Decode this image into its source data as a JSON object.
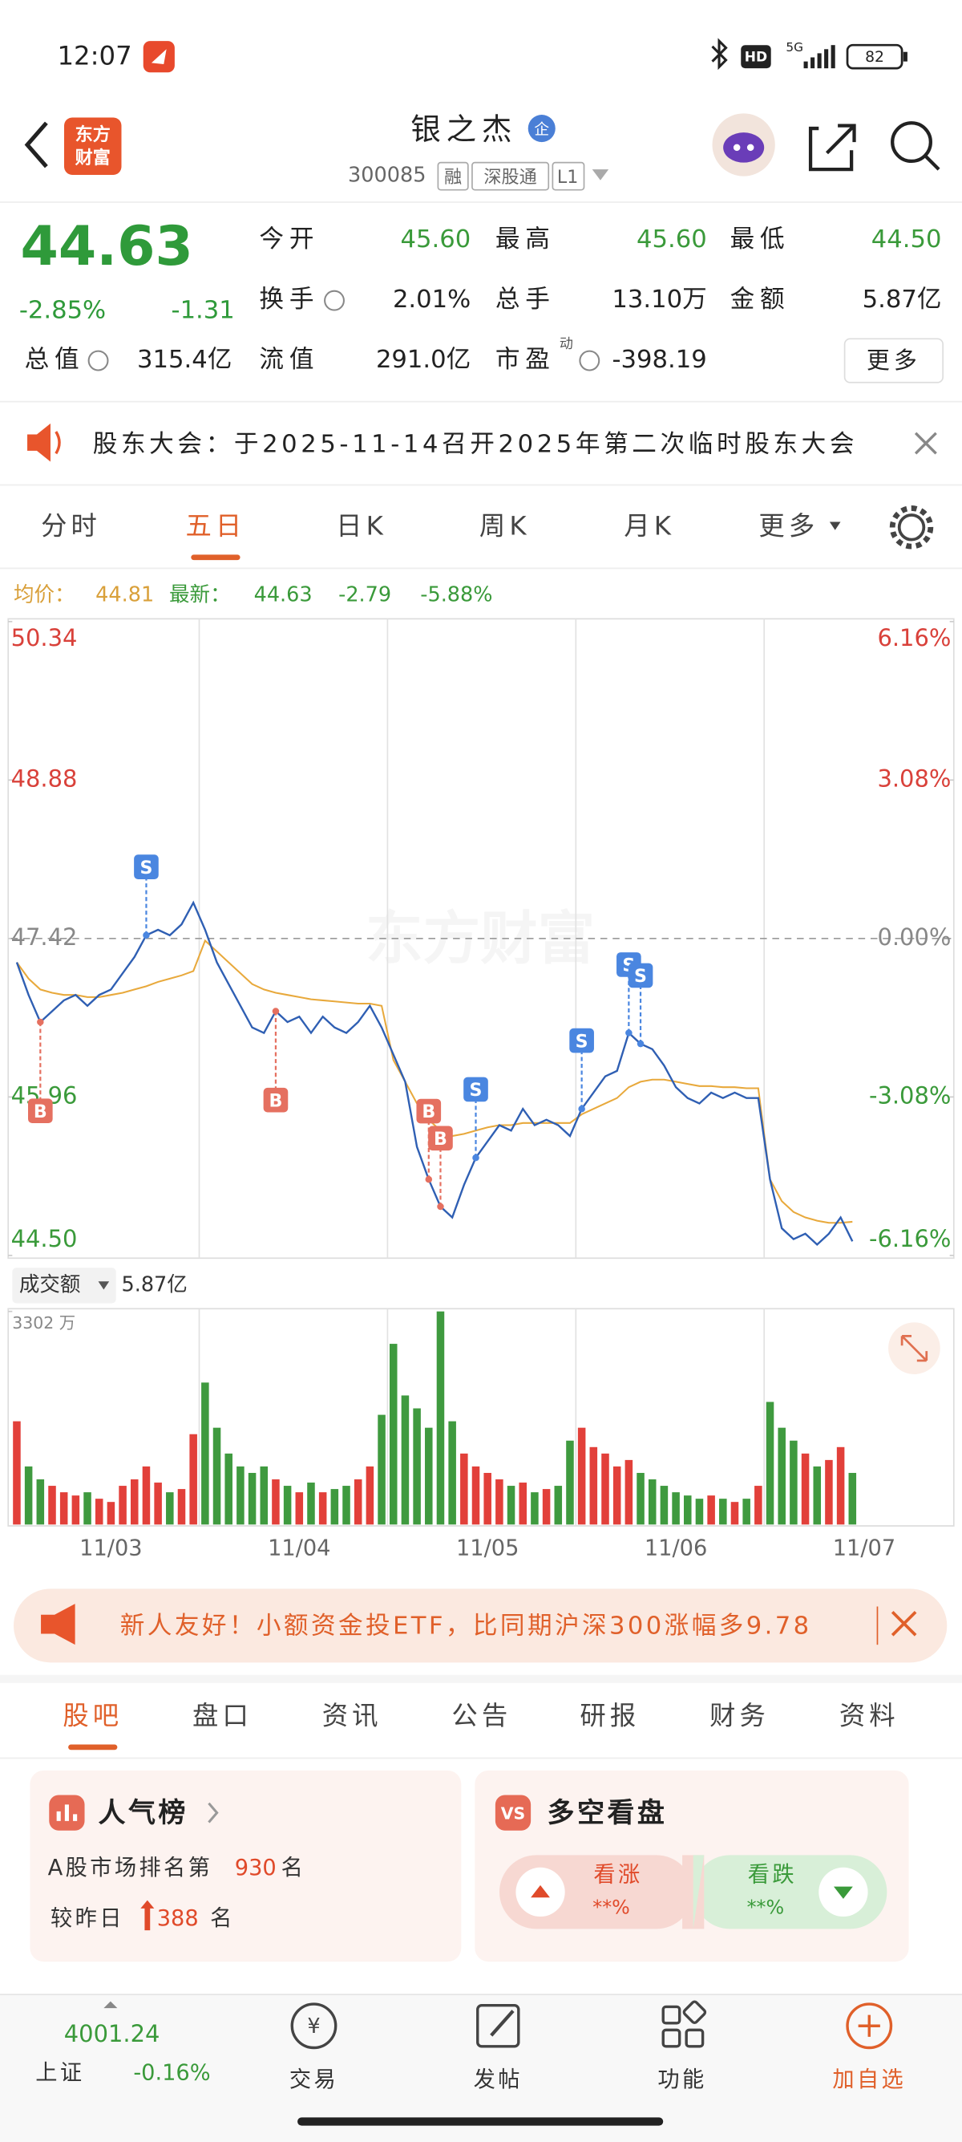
{
  "status_bar": {
    "time": "12:07",
    "hd": "HD",
    "network": "5G",
    "battery": "82"
  },
  "header": {
    "logo": [
      "东方",
      "财富"
    ],
    "name": "银之杰",
    "badge": "企",
    "code": "300085",
    "tags": [
      "融",
      "深股通",
      "L1"
    ]
  },
  "quote": {
    "price": "44.63",
    "change_pct": "-2.85%",
    "change": "-1.31",
    "fields": [
      {
        "label": "今开",
        "value": "45.60"
      },
      {
        "label": "最高",
        "value": "45.60"
      },
      {
        "label": "最低",
        "value": "44.50"
      },
      {
        "label": "换手",
        "value": "2.01%"
      },
      {
        "label": "总手",
        "value": "13.10万"
      },
      {
        "label": "金额",
        "value": "5.87亿"
      },
      {
        "label": "总值",
        "value": "315.4亿"
      },
      {
        "label": "流值",
        "value": "291.0亿"
      },
      {
        "label": "市盈",
        "sup": "动",
        "value": "-398.19"
      }
    ],
    "more": "更多"
  },
  "notice": {
    "text": "股东大会：于2025-11-14召开2025年第二次临时股东大会"
  },
  "chart_tabs": {
    "items": [
      "分时",
      "五日",
      "日K",
      "周K",
      "月K",
      "更多"
    ],
    "active": 1
  },
  "watermark": "东方财富",
  "chart_data": {
    "type": "line",
    "categories": [
      null,
      null,
      null,
      null,
      null,
      null,
      null,
      null,
      "11/03",
      null,
      null,
      null,
      null,
      null,
      null,
      null,
      null,
      null,
      null,
      null,
      null,
      null,
      null,
      null,
      "11/04",
      null,
      null,
      null,
      null,
      null,
      null,
      null,
      null,
      null,
      null,
      null,
      null,
      null,
      null,
      null,
      "11/05",
      null,
      null,
      null,
      null,
      null,
      null,
      null,
      null,
      null,
      null,
      null,
      null,
      null,
      null,
      null,
      "11/06",
      null,
      null,
      null,
      null,
      null,
      null,
      null,
      null,
      null,
      null,
      null,
      null,
      null,
      null,
      null,
      "11/07",
      null,
      null,
      null,
      null,
      null,
      null,
      null
    ],
    "series": [
      {
        "name": "均价：",
        "color": "#e8a93c",
        "values": [
          47.2,
          47.05,
          46.95,
          46.92,
          46.9,
          46.9,
          46.88,
          46.88,
          46.9,
          46.92,
          46.95,
          46.98,
          47.02,
          47.05,
          47.08,
          47.12,
          47.4,
          47.3,
          47.2,
          47.1,
          47.0,
          46.95,
          46.92,
          46.9,
          46.88,
          46.86,
          46.85,
          46.84,
          46.83,
          46.82,
          46.82,
          46.8,
          46.3,
          46.1,
          45.9,
          45.75,
          45.65,
          45.6,
          45.62,
          45.65,
          45.68,
          45.7,
          45.7,
          45.72,
          45.72,
          45.72,
          45.72,
          45.72,
          45.8,
          45.85,
          45.9,
          45.95,
          46.05,
          46.1,
          46.12,
          46.12,
          46.1,
          46.08,
          46.06,
          46.06,
          46.05,
          46.05,
          46.04,
          46.04,
          45.2,
          45.0,
          44.9,
          44.85,
          44.82,
          44.8,
          44.8,
          44.81,
          null,
          null,
          null,
          null,
          null,
          null,
          null,
          null
        ]
      },
      {
        "name": "最新：",
        "color": "#2f5fb3",
        "values": [
          47.2,
          46.9,
          46.65,
          46.75,
          46.85,
          46.9,
          46.8,
          46.9,
          46.95,
          47.1,
          47.25,
          47.45,
          47.5,
          47.45,
          47.55,
          47.75,
          47.5,
          47.2,
          47.0,
          46.8,
          46.6,
          46.55,
          46.75,
          46.65,
          46.7,
          46.55,
          46.7,
          46.6,
          46.55,
          46.65,
          46.8,
          46.6,
          46.35,
          46.1,
          45.5,
          45.2,
          44.95,
          44.85,
          45.15,
          45.4,
          45.55,
          45.7,
          45.65,
          45.85,
          45.7,
          45.75,
          45.7,
          45.6,
          45.85,
          46.0,
          46.15,
          46.2,
          46.55,
          46.45,
          46.4,
          46.25,
          46.05,
          45.95,
          45.9,
          46.0,
          45.95,
          46.0,
          45.95,
          45.95,
          45.2,
          44.75,
          44.65,
          44.7,
          44.6,
          44.7,
          44.85,
          44.63,
          null,
          null,
          null,
          null,
          null,
          null,
          null,
          null
        ]
      }
    ],
    "summary": {
      "avg": "44.81",
      "latest": "44.63",
      "change": "-2.79",
      "change_pct": "-5.88%"
    },
    "ylim": [
      44.5,
      50.34
    ],
    "yticks": [
      {
        "value": 44.5,
        "label": "44.50"
      },
      45.96,
      47.42,
      48.88,
      50.34
    ],
    "y2lim": [
      -6.16,
      6.16
    ],
    "y2ticks": [
      {
        "value": -6.16,
        "label": "-6.16%"
      },
      {
        "value": -3.08,
        "label": "-3.08%"
      },
      {
        "value": 0,
        "label": "0.00%"
      },
      {
        "value": 3.08,
        "label": "3.08%"
      },
      {
        "value": 6.16,
        "label": "6.16%"
      }
    ],
    "annotations": [
      {
        "label": "B",
        "index": 2,
        "side": "below"
      },
      {
        "label": "S",
        "index": 11,
        "side": "above"
      },
      {
        "label": "B",
        "index": 22,
        "side": "below"
      },
      {
        "label": "B",
        "index": 35,
        "side": "above"
      },
      {
        "label": "B",
        "index": 36,
        "side": "above"
      },
      {
        "label": "S",
        "index": 39,
        "side": "above"
      },
      {
        "label": "S",
        "index": 48,
        "side": "above"
      },
      {
        "label": "S",
        "index": 52,
        "side": "above"
      },
      {
        "label": "S",
        "index": 53,
        "side": "above"
      }
    ],
    "volume": {
      "type": "bar",
      "title": "成交额",
      "total": "5.87亿",
      "up_color": "#e2403a",
      "down_color": "#3f9a3f",
      "ylim": [
        0,
        3302
      ],
      "yticks": [
        {
          "value": 3302,
          "label": "3302 万"
        }
      ],
      "values": [
        1600,
        900,
        700,
        600,
        500,
        450,
        500,
        400,
        350,
        600,
        700,
        900,
        650,
        500,
        550,
        1400,
        2200,
        1500,
        1100,
        900,
        800,
        900,
        700,
        600,
        500,
        650,
        500,
        550,
        600,
        700,
        900,
        1700,
        2800,
        2000,
        1800,
        1500,
        3302,
        1600,
        1100,
        900,
        800,
        700,
        600,
        650,
        500,
        550,
        600,
        1300,
        1500,
        1200,
        1100,
        900,
        1000,
        800,
        700,
        600,
        500,
        450,
        400,
        450,
        400,
        350,
        400,
        600,
        1900,
        1500,
        1300,
        1100,
        900,
        1000,
        1200,
        800,
        null,
        null,
        null,
        null,
        null,
        null,
        null,
        null
      ]
    }
  },
  "banner": {
    "text": "新人友好！小额资金投ETF，比同期沪深300涨幅多9.78"
  },
  "tabs": {
    "items": [
      "股吧",
      "盘口",
      "资讯",
      "公告",
      "研报",
      "财务",
      "资料"
    ],
    "active": 0
  },
  "popularity": {
    "title": "人气榜",
    "rank_text": "A股市场排名第",
    "rank": "930",
    "rank_unit": "名",
    "change_text": "较昨日",
    "change": "388",
    "change_unit": "名"
  },
  "sentiment": {
    "title": "多空看盘",
    "bull": "看涨",
    "bull_value": "**%",
    "bear": "看跌",
    "bear_value": "**%"
  },
  "bottom_nav": {
    "index_value": "4001.24",
    "index_name": "上证",
    "index_change": "-0.16%",
    "items": [
      "交易",
      "发帖",
      "功能",
      "加自选"
    ]
  }
}
